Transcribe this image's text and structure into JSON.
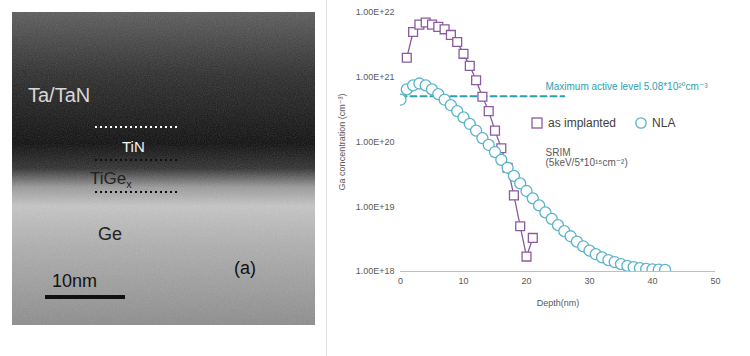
{
  "micrograph": {
    "layers": [
      "Ta/TaN",
      "TiN",
      {
        "text": "TiGe",
        "subscript": "x"
      },
      "Ge"
    ],
    "scale_bar": "10nm",
    "panel": "(a)"
  },
  "chart_data": {
    "type": "scatter",
    "x_label": "Depth(nm)",
    "y_label": "Ga concentration (cm⁻³)",
    "log": "y",
    "grid": false,
    "legend": "right",
    "xlim": [
      0,
      50
    ],
    "xticks": [
      0,
      10,
      20,
      30,
      40,
      50
    ],
    "ylim": [
      1e+18,
      1e+22
    ],
    "yticks": [
      {
        "value": 1e+18,
        "label": "1.00E+18"
      },
      {
        "value": 1e+19,
        "label": "1.00E+19"
      },
      {
        "value": 1e+20,
        "label": "1.00E+20"
      },
      {
        "value": 1e+21,
        "label": "1.00E+21"
      },
      {
        "value": 1e+22,
        "label": "1.00E+22"
      }
    ],
    "series": [
      {
        "name": "as implanted",
        "color": "#8c5a9e",
        "marker": "square",
        "line_style": "solid",
        "x": [
          1,
          2,
          3,
          4,
          5,
          6,
          7,
          8,
          9,
          10,
          11,
          12,
          13,
          14,
          15,
          16,
          17,
          18,
          19,
          20,
          21
        ],
        "values": [
          2e+21,
          5e+21,
          6.5e+21,
          7e+21,
          6.5e+21,
          6e+21,
          5.5e+21,
          4.5e+21,
          3.5e+21,
          2.3e+21,
          1.5e+21,
          9e+20,
          5e+20,
          3e+20,
          1.5e+20,
          8e+19,
          4e+19,
          1.5e+19,
          5e+18,
          1.7e+18,
          3.3e+18
        ]
      },
      {
        "name": "NLA",
        "color": "#5ab3c9",
        "marker": "circle",
        "line_style": "none",
        "x": [
          0,
          1,
          2,
          3,
          4,
          5,
          6,
          7,
          8,
          9,
          10,
          11,
          12,
          13,
          14,
          15,
          16,
          17,
          18,
          19,
          20,
          21,
          22,
          23,
          24,
          25,
          26,
          27,
          28,
          29,
          30,
          31,
          32,
          33,
          34,
          35,
          36,
          37,
          38,
          39,
          40,
          41,
          42
        ],
        "values": [
          4.5e+20,
          6.5e+20,
          7.5e+20,
          8e+20,
          7.5e+20,
          6.5e+20,
          5.5e+20,
          4.5e+20,
          3.7e+20,
          3e+20,
          2.4e+20,
          1.9e+20,
          1.5e+20,
          1.15e+20,
          9e+19,
          7e+19,
          5.3e+19,
          4e+19,
          3e+19,
          2.3e+19,
          1.75e+19,
          1.35e+19,
          1.05e+19,
          8.2e+18,
          6.5e+18,
          5.2e+18,
          4.2e+18,
          3.5e+18,
          2.9e+18,
          2.45e+18,
          2.1e+18,
          1.85e+18,
          1.65e+18,
          1.5e+18,
          1.4e+18,
          1.3e+18,
          1.22e+18,
          1.17e+18,
          1.13e+18,
          1.1e+18,
          1.08e+18,
          1.07e+18,
          1.06e+18
        ]
      }
    ],
    "reference_line": {
      "y": 5.08e+20,
      "x": [
        0,
        26
      ],
      "label": "Maximum active level 5.08*10²⁰cm⁻³",
      "color": "#2a9fb0",
      "line_style": "dashed"
    },
    "annotations": [
      "SRIM",
      "(5keV/5*10¹⁵cm⁻²)"
    ]
  }
}
